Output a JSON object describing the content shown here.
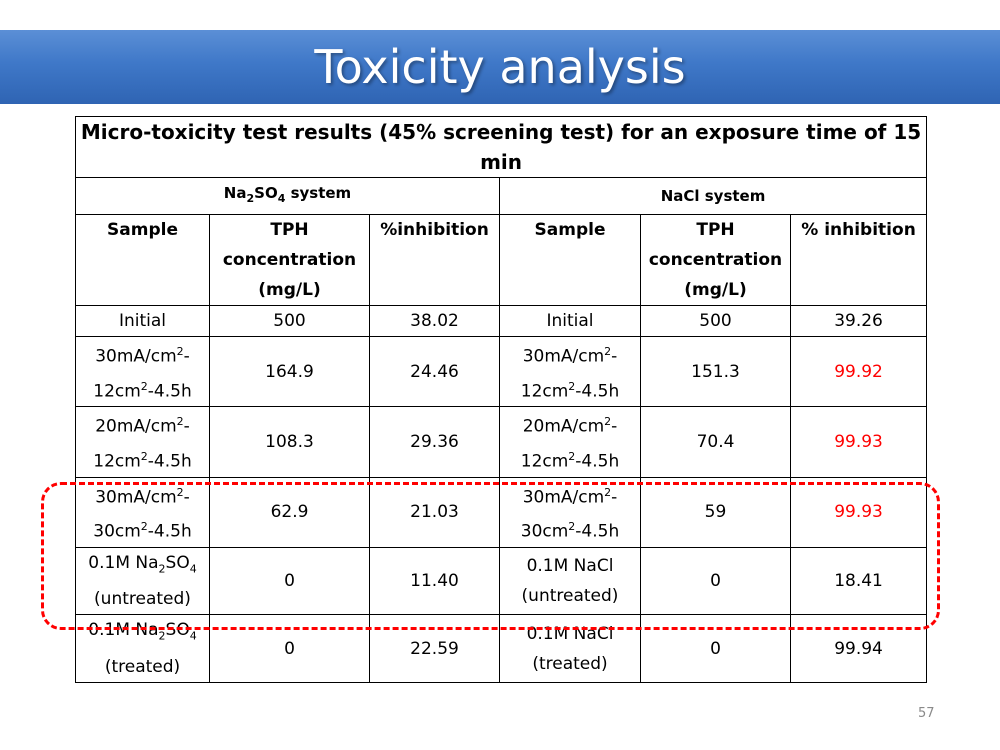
{
  "slide": {
    "title": "Toxicity analysis",
    "page_number": "57"
  },
  "table": {
    "caption": "Micro-toxicity test results (45% screening test) for an exposure time of 15 min",
    "na2so4_system_label": {
      "pre": "Na",
      "sub1": "2",
      "mid": "SO",
      "sub2": "4",
      "post": " system"
    },
    "nacl_system_label": "NaCl system",
    "headers": {
      "left": {
        "sample": "Sample",
        "tph_line1": "TPH",
        "tph_line2": "concentration",
        "tph_line3": "(mg/L)",
        "inhibition": "%inhibition"
      },
      "right": {
        "sample": "Sample",
        "tph_line1": "TPH",
        "tph_line2": "concentration",
        "tph_line3": "(mg/L)",
        "inhibition": "% inhibition"
      }
    },
    "initial": {
      "left": {
        "sample": "Initial",
        "tph": "500",
        "inhibition": "38.02"
      },
      "right": {
        "sample": "Initial",
        "tph": "500",
        "inhibition": "39.26"
      }
    },
    "rows": [
      {
        "left": {
          "a": "30mA/cm",
          "b": "-",
          "c": "12cm",
          "d": "-4.5h",
          "tph": "164.9",
          "inhibition": "24.46"
        },
        "right": {
          "a": "30mA/cm",
          "b": "-",
          "c": "12cm",
          "d": "-4.5h",
          "tph": "151.3",
          "inhibition": "99.92"
        }
      },
      {
        "left": {
          "a": "20mA/cm",
          "b": "-",
          "c": "12cm",
          "d": "-4.5h",
          "tph": "108.3",
          "inhibition": "29.36"
        },
        "right": {
          "a": "20mA/cm",
          "b": "-",
          "c": "12cm",
          "d": "-4.5h",
          "tph": "70.4",
          "inhibition": "99.93"
        }
      },
      {
        "left": {
          "a": "30mA/cm",
          "b": "-",
          "c": "30cm",
          "d": "-4.5h",
          "tph": "62.9",
          "inhibition": "21.03"
        },
        "right": {
          "a": "30mA/cm",
          "b": "-",
          "c": "30cm",
          "d": "-4.5h",
          "tph": "59",
          "inhibition": "99.93"
        }
      }
    ],
    "superscript": "2",
    "control_untreated": {
      "left": {
        "line1_pre": "0.1M Na",
        "sub1": "2",
        "line1_mid": "SO",
        "sub2": "4",
        "line2": "(untreated)",
        "tph": "0",
        "inhibition": "11.40"
      },
      "right": {
        "line1": "0.1M NaCl",
        "line2": "(untreated)",
        "tph": "0",
        "inhibition": "18.41"
      }
    },
    "control_treated": {
      "left": {
        "line1_pre": "0.1M Na",
        "sub1": "2",
        "line1_mid": "SO",
        "sub2": "4",
        "line2": "(treated)",
        "tph": "0",
        "inhibition": "22.59"
      },
      "right": {
        "line1": "0.1M NaCl",
        "line2": "(treated)",
        "tph": "0",
        "inhibition": "99.94"
      }
    }
  },
  "colors": {
    "title_bar": "#3f78c8",
    "highlight": "#ff0000",
    "red_value": "#ff0000"
  }
}
